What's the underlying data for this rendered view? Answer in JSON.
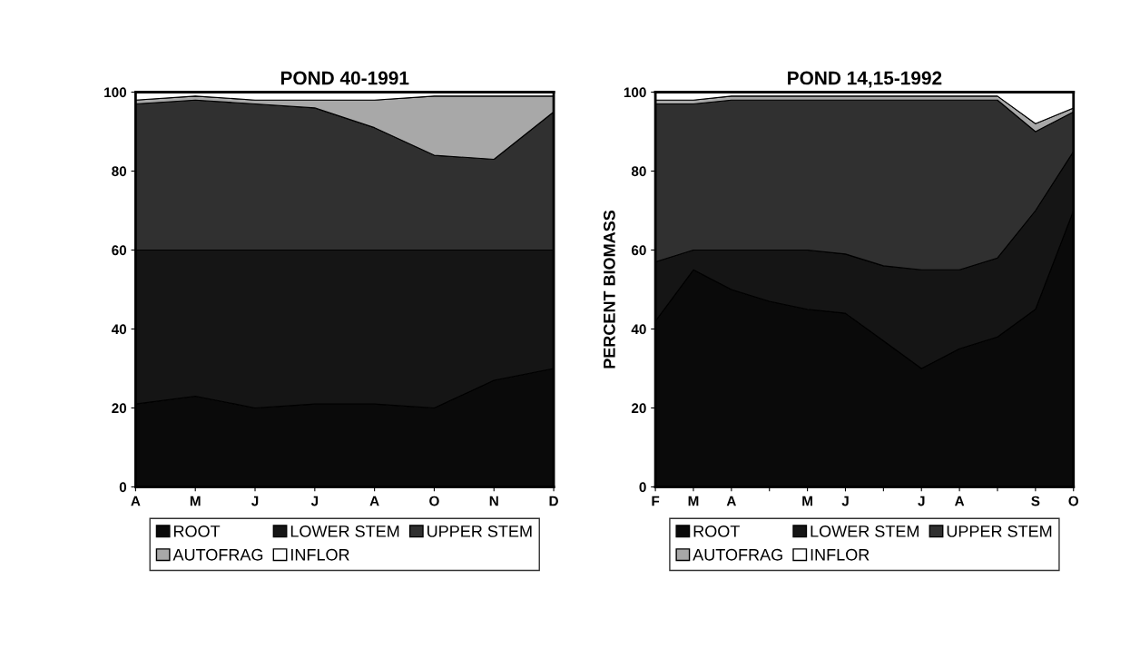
{
  "chart_data": [
    {
      "type": "area",
      "stacked": true,
      "title": "POND 40-1991",
      "categories": [
        "A",
        "M",
        "J",
        "J",
        "A",
        "O",
        "N",
        "D"
      ],
      "ylim": [
        0,
        100
      ],
      "yticks": [
        0,
        20,
        40,
        60,
        80,
        100
      ],
      "grid": false,
      "legend": "bottom",
      "series": [
        {
          "name": "ROOT",
          "color": "#0a0a0a",
          "values": [
            21,
            23,
            20,
            21,
            21,
            20,
            27,
            30
          ]
        },
        {
          "name": "LOWER STEM",
          "color": "#151515",
          "values": [
            39,
            37,
            40,
            39,
            39,
            40,
            33,
            30
          ]
        },
        {
          "name": "UPPER STEM",
          "color": "#303030",
          "values": [
            37,
            38,
            37,
            36,
            31,
            24,
            23,
            35
          ]
        },
        {
          "name": "AUTOFRAG",
          "color": "#a8a8a8",
          "values": [
            1,
            1,
            1,
            2,
            7,
            15,
            16,
            4
          ]
        },
        {
          "name": "INFLOR",
          "color": "#ffffff",
          "values": [
            2,
            1,
            2,
            2,
            2,
            1,
            1,
            1
          ]
        }
      ]
    },
    {
      "type": "area",
      "stacked": true,
      "title": "POND 14,15-1992",
      "ylabel": "PERCENT BIOMASS",
      "categories": [
        "F",
        "M",
        "A",
        null,
        "M",
        "J",
        null,
        "J",
        "A",
        null,
        "S",
        "O"
      ],
      "ylim": [
        0,
        100
      ],
      "yticks": [
        0,
        20,
        40,
        60,
        80,
        100
      ],
      "grid": false,
      "legend": "bottom",
      "series": [
        {
          "name": "ROOT",
          "color": "#0a0a0a",
          "values": [
            42,
            55,
            50,
            47,
            45,
            44,
            37,
            30,
            35,
            38,
            45,
            70
          ]
        },
        {
          "name": "LOWER STEM",
          "color": "#151515",
          "values": [
            15,
            5,
            10,
            13,
            15,
            15,
            19,
            25,
            20,
            20,
            25,
            15
          ]
        },
        {
          "name": "UPPER STEM",
          "color": "#303030",
          "values": [
            40,
            37,
            38,
            38,
            38,
            39,
            42,
            43,
            43,
            40,
            20,
            10
          ]
        },
        {
          "name": "AUTOFRAG",
          "color": "#a8a8a8",
          "values": [
            1,
            1,
            1,
            1,
            1,
            1,
            1,
            1,
            1,
            1,
            2,
            1
          ]
        },
        {
          "name": "INFLOR",
          "color": "#ffffff",
          "values": [
            2,
            2,
            1,
            1,
            1,
            1,
            1,
            1,
            1,
            1,
            8,
            4
          ]
        }
      ]
    }
  ]
}
